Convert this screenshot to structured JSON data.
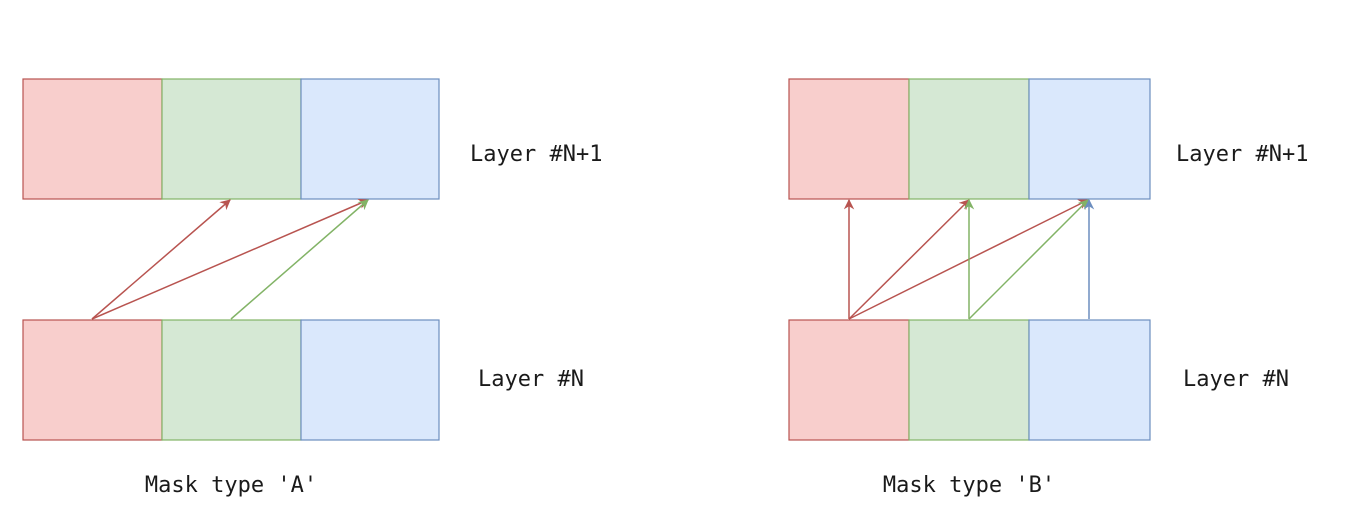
{
  "panels": [
    {
      "id": "A",
      "caption": "Mask type 'A'",
      "upper_layer_label": "Layer #N+1",
      "lower_layer_label": "Layer #N",
      "connections": [
        {
          "from": 0,
          "to": 1
        },
        {
          "from": 0,
          "to": 2
        },
        {
          "from": 1,
          "to": 2
        }
      ]
    },
    {
      "id": "B",
      "caption": "Mask type 'B'",
      "upper_layer_label": "Layer #N+1",
      "lower_layer_label": "Layer #N",
      "connections": [
        {
          "from": 0,
          "to": 0
        },
        {
          "from": 0,
          "to": 1
        },
        {
          "from": 0,
          "to": 2
        },
        {
          "from": 1,
          "to": 1
        },
        {
          "from": 1,
          "to": 2
        },
        {
          "from": 2,
          "to": 2
        }
      ]
    }
  ],
  "colors": {
    "cells": [
      {
        "fill": "#f8cecc",
        "stroke": "#b85450"
      },
      {
        "fill": "#d5e8d4",
        "stroke": "#82b366"
      },
      {
        "fill": "#dae8fc",
        "stroke": "#6c8ebf"
      }
    ],
    "arrows": [
      "#b85450",
      "#82b366",
      "#6c8ebf"
    ]
  }
}
